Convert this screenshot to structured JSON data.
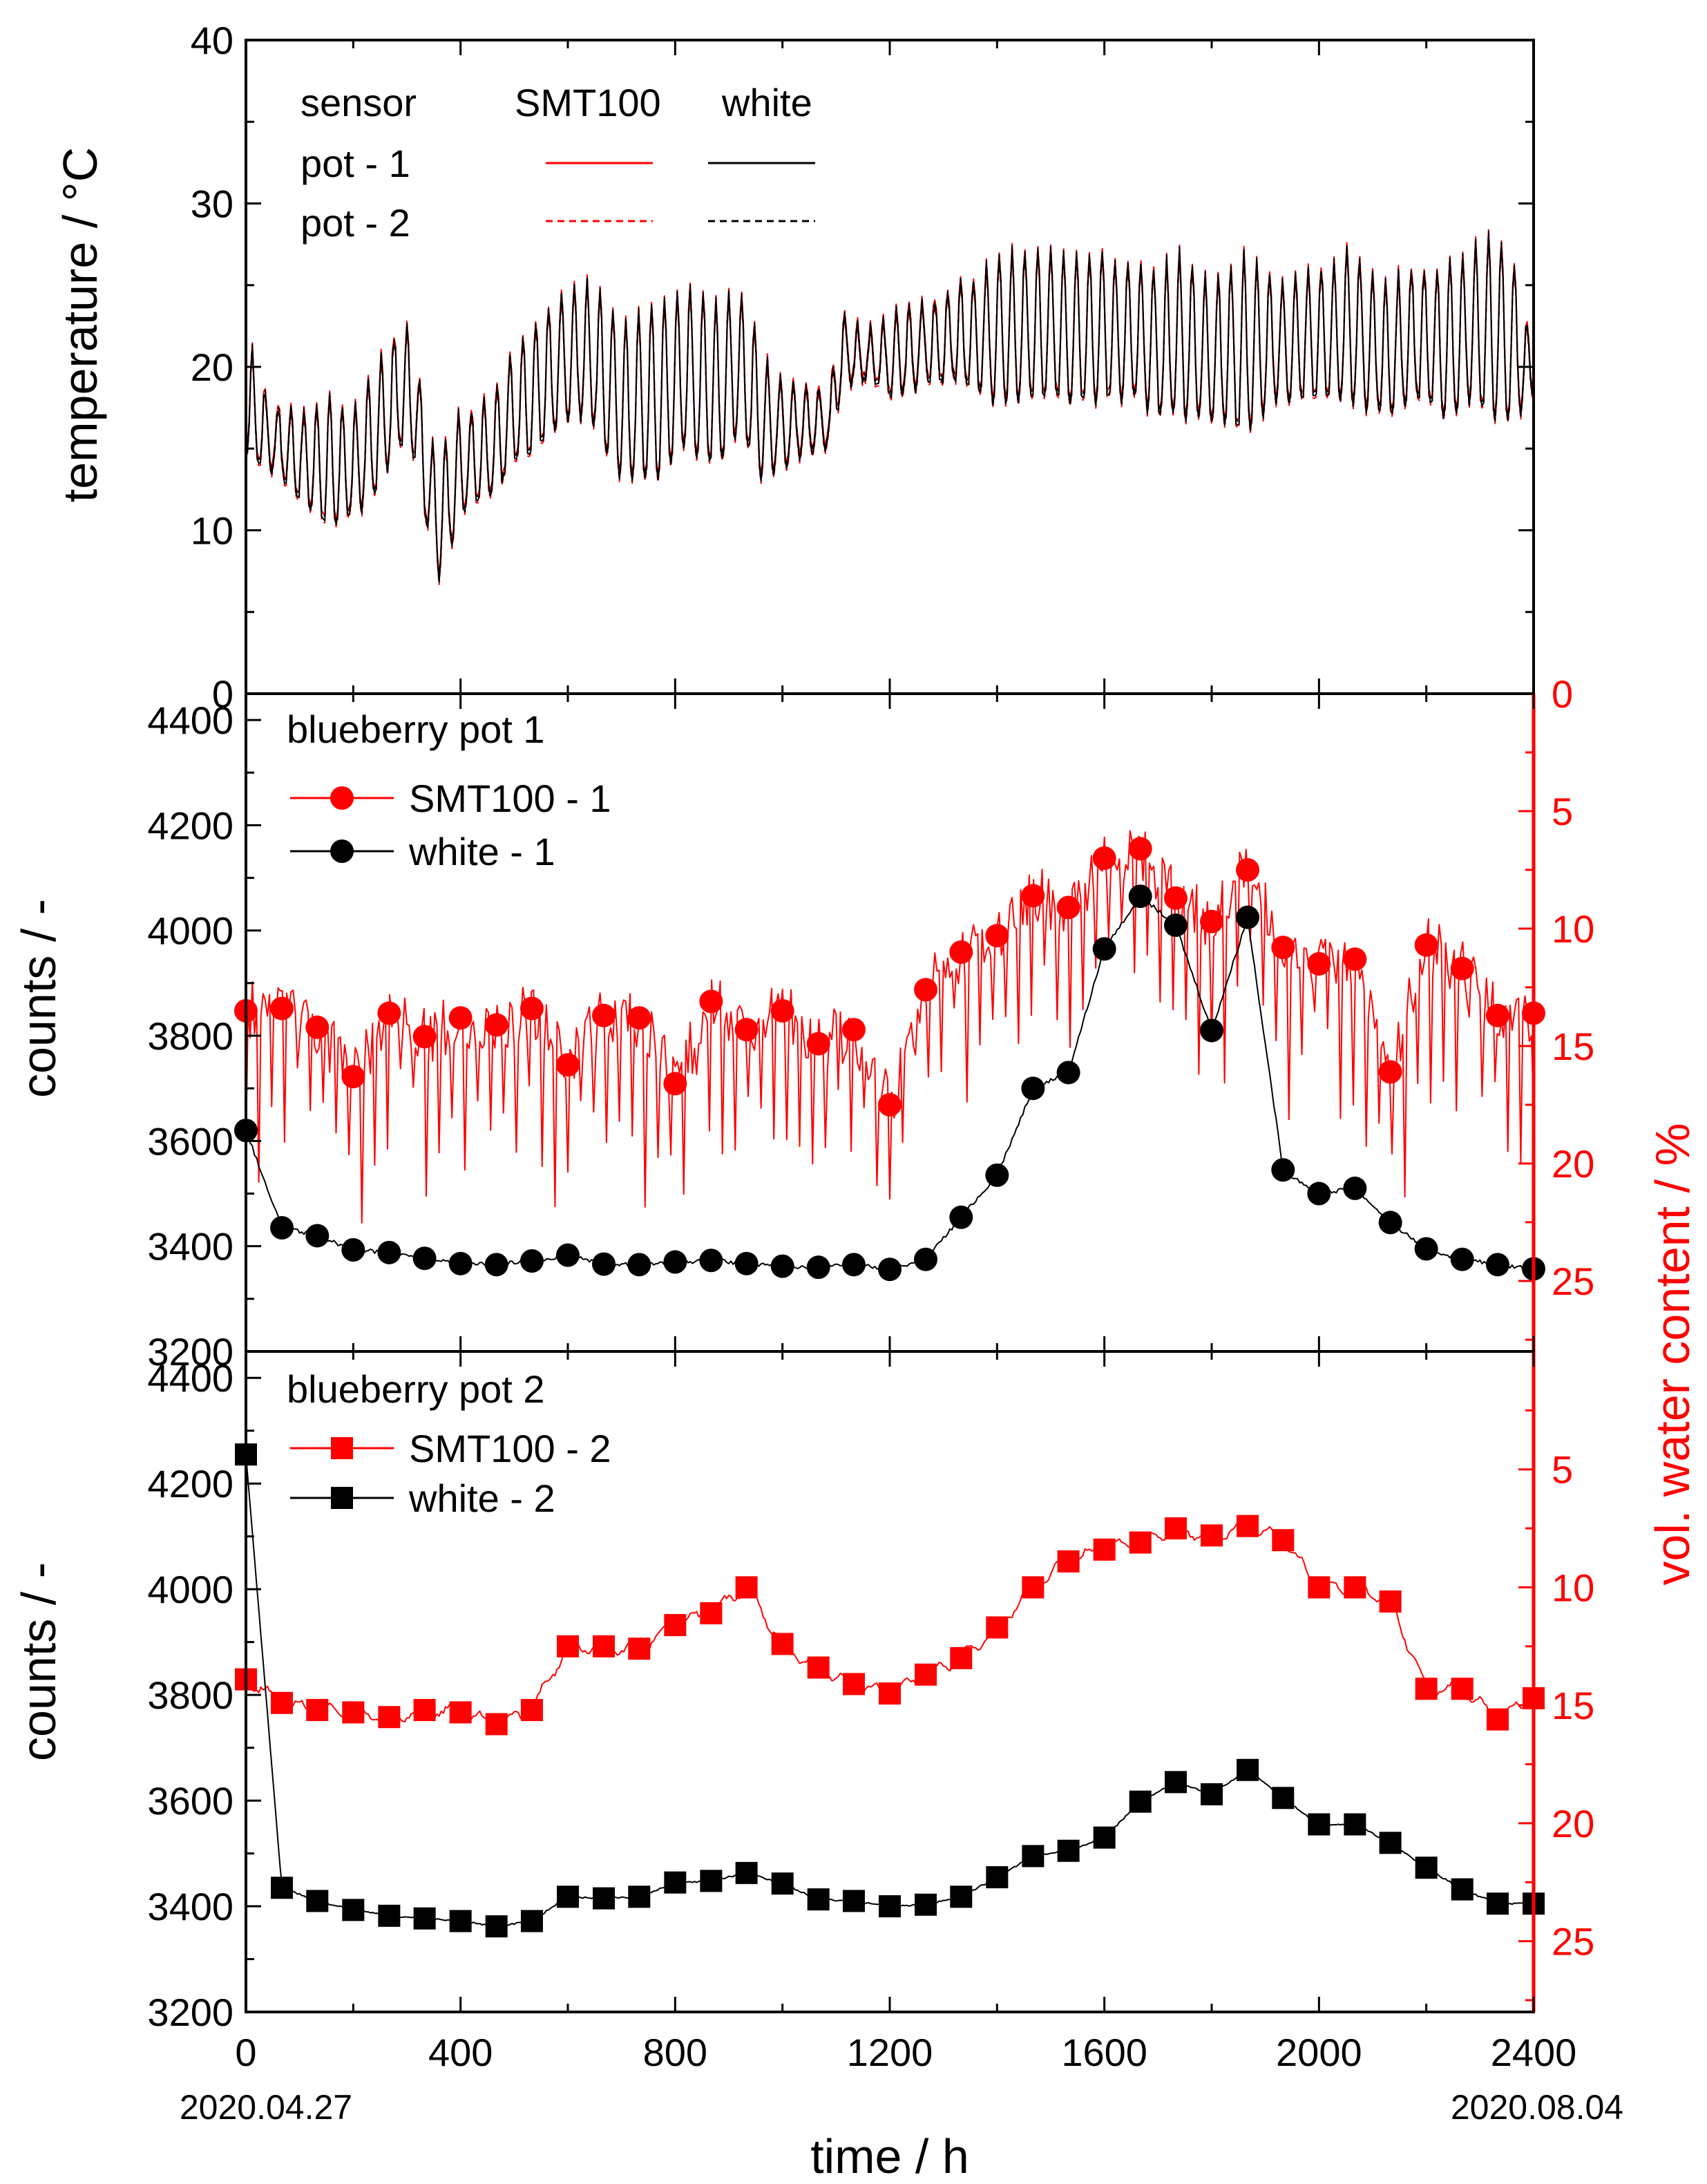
{
  "colors": {
    "red": "#ff0000",
    "black": "#000000"
  },
  "x_axis": {
    "range": [
      0,
      2400
    ],
    "ticks": [
      0,
      400,
      800,
      1200,
      1600,
      2000,
      2400
    ],
    "tick_labels": [
      "0",
      "400",
      "800",
      "1200",
      "1600",
      "2000",
      "2400"
    ],
    "label": "time / h",
    "start_date": "2020.04.27",
    "end_date": "2020.08.04"
  },
  "chart_data": [
    {
      "type": "line",
      "title": "",
      "ylabel": "temperature / °C",
      "ylim": [
        0,
        40
      ],
      "yticks": [
        "0",
        "10",
        "20",
        "30",
        "40"
      ],
      "legend": {
        "header_col1": "sensor",
        "header_col2": "SMT100",
        "header_col3": "white",
        "row1": "pot - 1",
        "row2": "pot - 2"
      },
      "envelope_x": [
        0,
        40,
        100,
        160,
        200,
        240,
        280,
        310,
        340,
        360,
        400,
        460,
        500,
        550,
        600,
        640,
        700,
        760,
        820,
        880,
        920,
        960,
        1000,
        1050,
        1090,
        1100,
        1120,
        1160,
        1200,
        1260,
        1300,
        1340,
        1380,
        1420,
        1460,
        1500,
        1560,
        1600,
        1660,
        1700,
        1740,
        1800,
        1860,
        1920,
        2000,
        2060,
        2120,
        2180,
        2240,
        2280,
        2330,
        2370,
        2400
      ],
      "envelope_min": [
        14,
        14,
        12,
        10,
        11,
        12,
        15,
        15,
        10,
        7,
        11,
        12,
        14,
        15,
        17,
        17,
        13,
        13,
        15,
        14,
        16,
        13,
        14,
        15,
        15,
        17,
        19,
        19,
        18,
        19,
        19,
        19,
        18,
        18,
        18,
        18,
        18,
        18,
        18,
        17,
        17,
        17,
        16,
        18,
        18,
        18,
        17,
        18,
        17,
        18,
        17,
        17,
        18
      ],
      "envelope_max": [
        22,
        18,
        17,
        18,
        17,
        20,
        22,
        23,
        15,
        15,
        17,
        18,
        21,
        23,
        25,
        25,
        23,
        24,
        25,
        24,
        25,
        21,
        19,
        19,
        18,
        24,
        23,
        22,
        23,
        24,
        24,
        25,
        26,
        27,
        27,
        27,
        27,
        27,
        26,
        26,
        27,
        25,
        27,
        25,
        26,
        27,
        25,
        26,
        26,
        27,
        28,
        26,
        20
      ],
      "series": [
        {
          "name": "SMT100 pot - 1",
          "color": "#ff0000",
          "dash": "solid"
        },
        {
          "name": "SMT100 pot - 2",
          "color": "#ff0000",
          "dash": "dashed"
        },
        {
          "name": "white pot - 1",
          "color": "#000000",
          "dash": "solid"
        },
        {
          "name": "white pot - 2",
          "color": "#000000",
          "dash": "dashed"
        }
      ]
    },
    {
      "type": "line",
      "title": "blueberry pot 1",
      "ylabel": "counts  / -",
      "ylim": [
        3200,
        4450
      ],
      "yticks": [
        "3200",
        "3400",
        "3600",
        "3800",
        "4000",
        "4200",
        "4400"
      ],
      "y2label": "vol. water content / %",
      "y2lim": [
        0,
        28
      ],
      "y2ticks": [
        "0",
        "5",
        "10",
        "15",
        "20",
        "25"
      ],
      "series": [
        {
          "name": "SMT100 - 1",
          "color": "#ff0000",
          "marker": "circle",
          "axis": "right",
          "x": [
            0,
            67,
            133,
            200,
            267,
            333,
            400,
            467,
            533,
            600,
            667,
            733,
            800,
            867,
            933,
            1000,
            1067,
            1133,
            1200,
            1267,
            1333,
            1400,
            1467,
            1533,
            1600,
            1667,
            1733,
            1800,
            1867,
            1933,
            2000,
            2067,
            2133,
            2200,
            2267,
            2333,
            2400
          ],
          "values": [
            13.5,
            13.4,
            14.2,
            16.3,
            13.6,
            14.6,
            13.8,
            14.1,
            13.4,
            15.8,
            13.7,
            13.8,
            16.6,
            13.1,
            14.3,
            13.5,
            14.9,
            14.3,
            17.5,
            12.6,
            11.0,
            10.3,
            8.6,
            9.1,
            7.0,
            6.6,
            8.7,
            9.7,
            7.5,
            10.8,
            11.5,
            11.3,
            16.1,
            10.7,
            11.7,
            13.7,
            13.6
          ]
        },
        {
          "name": "white - 1",
          "color": "#000000",
          "marker": "circle",
          "axis": "left",
          "x": [
            0,
            67,
            133,
            200,
            267,
            333,
            400,
            467,
            533,
            600,
            667,
            733,
            800,
            867,
            933,
            1000,
            1067,
            1133,
            1200,
            1267,
            1333,
            1400,
            1467,
            1533,
            1600,
            1667,
            1733,
            1800,
            1867,
            1933,
            2000,
            2067,
            2133,
            2200,
            2267,
            2333,
            2400
          ],
          "values": [
            3620,
            3435,
            3420,
            3393,
            3388,
            3377,
            3367,
            3365,
            3372,
            3383,
            3366,
            3365,
            3370,
            3373,
            3367,
            3362,
            3360,
            3365,
            3356,
            3375,
            3455,
            3535,
            3700,
            3730,
            3965,
            4065,
            4010,
            3810,
            4025,
            3545,
            3500,
            3510,
            3445,
            3395,
            3375,
            3365,
            3357
          ]
        }
      ]
    },
    {
      "type": "line",
      "title": "blueberry pot 2",
      "ylabel": "counts / -",
      "ylim": [
        3200,
        4450
      ],
      "yticks": [
        "3200",
        "3400",
        "3600",
        "3800",
        "4000",
        "4200",
        "4400"
      ],
      "y2label": "vol. water content / %",
      "y2lim": [
        0,
        28
      ],
      "y2ticks": [
        "5",
        "10",
        "15",
        "20",
        "25"
      ],
      "series": [
        {
          "name": "SMT100 - 2",
          "color": "#ff0000",
          "marker": "square",
          "axis": "right",
          "x": [
            0,
            67,
            133,
            200,
            267,
            333,
            400,
            467,
            533,
            600,
            667,
            733,
            800,
            867,
            933,
            1000,
            1067,
            1133,
            1200,
            1267,
            1333,
            1400,
            1467,
            1533,
            1600,
            1667,
            1733,
            1800,
            1867,
            1933,
            2000,
            2067,
            2133,
            2200,
            2267,
            2333,
            2400
          ],
          "values": [
            13.9,
            14.9,
            15.2,
            15.3,
            15.5,
            15.2,
            15.3,
            15.8,
            15.2,
            12.5,
            12.5,
            12.6,
            11.6,
            11.1,
            10.0,
            12.4,
            13.4,
            14.1,
            14.5,
            13.7,
            13.0,
            11.7,
            10.0,
            8.9,
            8.4,
            8.1,
            7.5,
            7.8,
            7.4,
            8.0,
            10.0,
            10.0,
            10.6,
            14.3,
            14.3,
            15.6,
            14.7
          ]
        },
        {
          "name": "white - 2",
          "color": "#000000",
          "marker": "square",
          "axis": "left",
          "x": [
            0,
            67,
            133,
            200,
            267,
            333,
            400,
            467,
            533,
            600,
            667,
            733,
            800,
            867,
            933,
            1000,
            1067,
            1133,
            1200,
            1267,
            1333,
            1400,
            1467,
            1533,
            1600,
            1667,
            1733,
            1800,
            1867,
            1933,
            2000,
            2067,
            2133,
            2200,
            2267,
            2333,
            2400
          ],
          "values": [
            4255,
            3435,
            3410,
            3393,
            3382,
            3377,
            3372,
            3362,
            3372,
            3418,
            3415,
            3418,
            3445,
            3448,
            3463,
            3443,
            3413,
            3410,
            3400,
            3403,
            3418,
            3455,
            3495,
            3505,
            3530,
            3598,
            3635,
            3612,
            3658,
            3605,
            3555,
            3555,
            3520,
            3473,
            3432,
            3405,
            3405
          ]
        }
      ]
    }
  ]
}
